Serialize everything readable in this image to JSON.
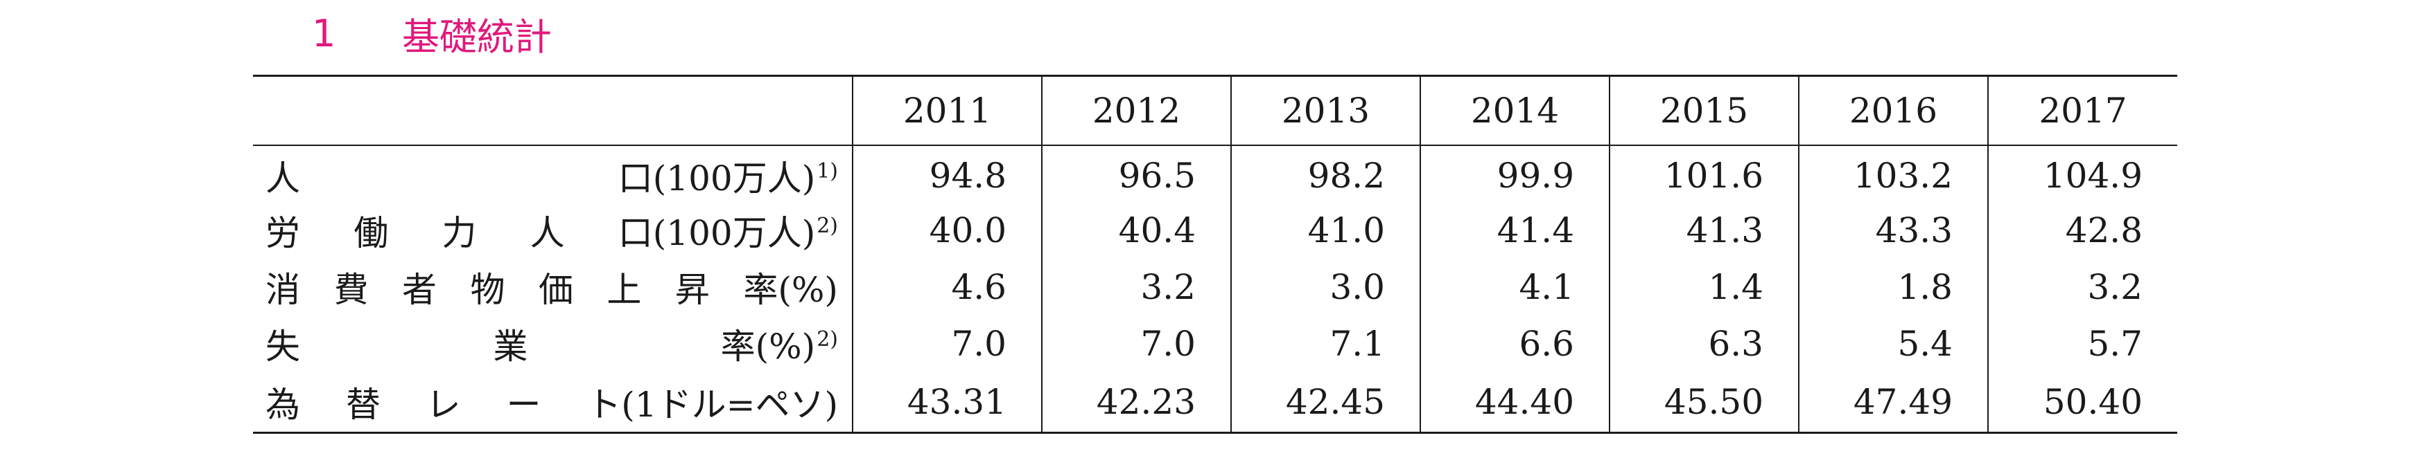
{
  "section": {
    "number": "1",
    "title": "基礎統計"
  },
  "table": {
    "years": [
      "2011",
      "2012",
      "2013",
      "2014",
      "2015",
      "2016",
      "2017"
    ],
    "rows": [
      {
        "label_chars": [
          "人",
          "口"
        ],
        "unit": "(100万人)",
        "note": "1)",
        "values": [
          "94.8",
          "96.5",
          "98.2",
          "99.9",
          "101.6",
          "103.2",
          "104.9"
        ]
      },
      {
        "label_chars": [
          "労",
          "働",
          "力",
          "人",
          "口"
        ],
        "unit": "(100万人)",
        "note": "2)",
        "values": [
          "40.0",
          "40.4",
          "41.0",
          "41.4",
          "41.3",
          "43.3",
          "42.8"
        ]
      },
      {
        "label_chars": [
          "消",
          "費",
          "者",
          "物",
          "価",
          "上",
          "昇",
          "率"
        ],
        "unit": "(%)",
        "note": "",
        "values": [
          "4.6",
          "3.2",
          "3.0",
          "4.1",
          "1.4",
          "1.8",
          "3.2"
        ]
      },
      {
        "label_chars": [
          "失",
          "業",
          "率"
        ],
        "unit": "(%)",
        "note": "2)",
        "values": [
          "7.0",
          "7.0",
          "7.1",
          "6.6",
          "6.3",
          "5.4",
          "5.7"
        ]
      },
      {
        "label_chars": [
          "為",
          "替",
          "レ",
          "ー",
          "ト"
        ],
        "unit": "(1ドル=ペソ)",
        "note": "",
        "values": [
          "43.31",
          "42.23",
          "42.45",
          "44.40",
          "45.50",
          "47.49",
          "50.40"
        ]
      }
    ]
  }
}
